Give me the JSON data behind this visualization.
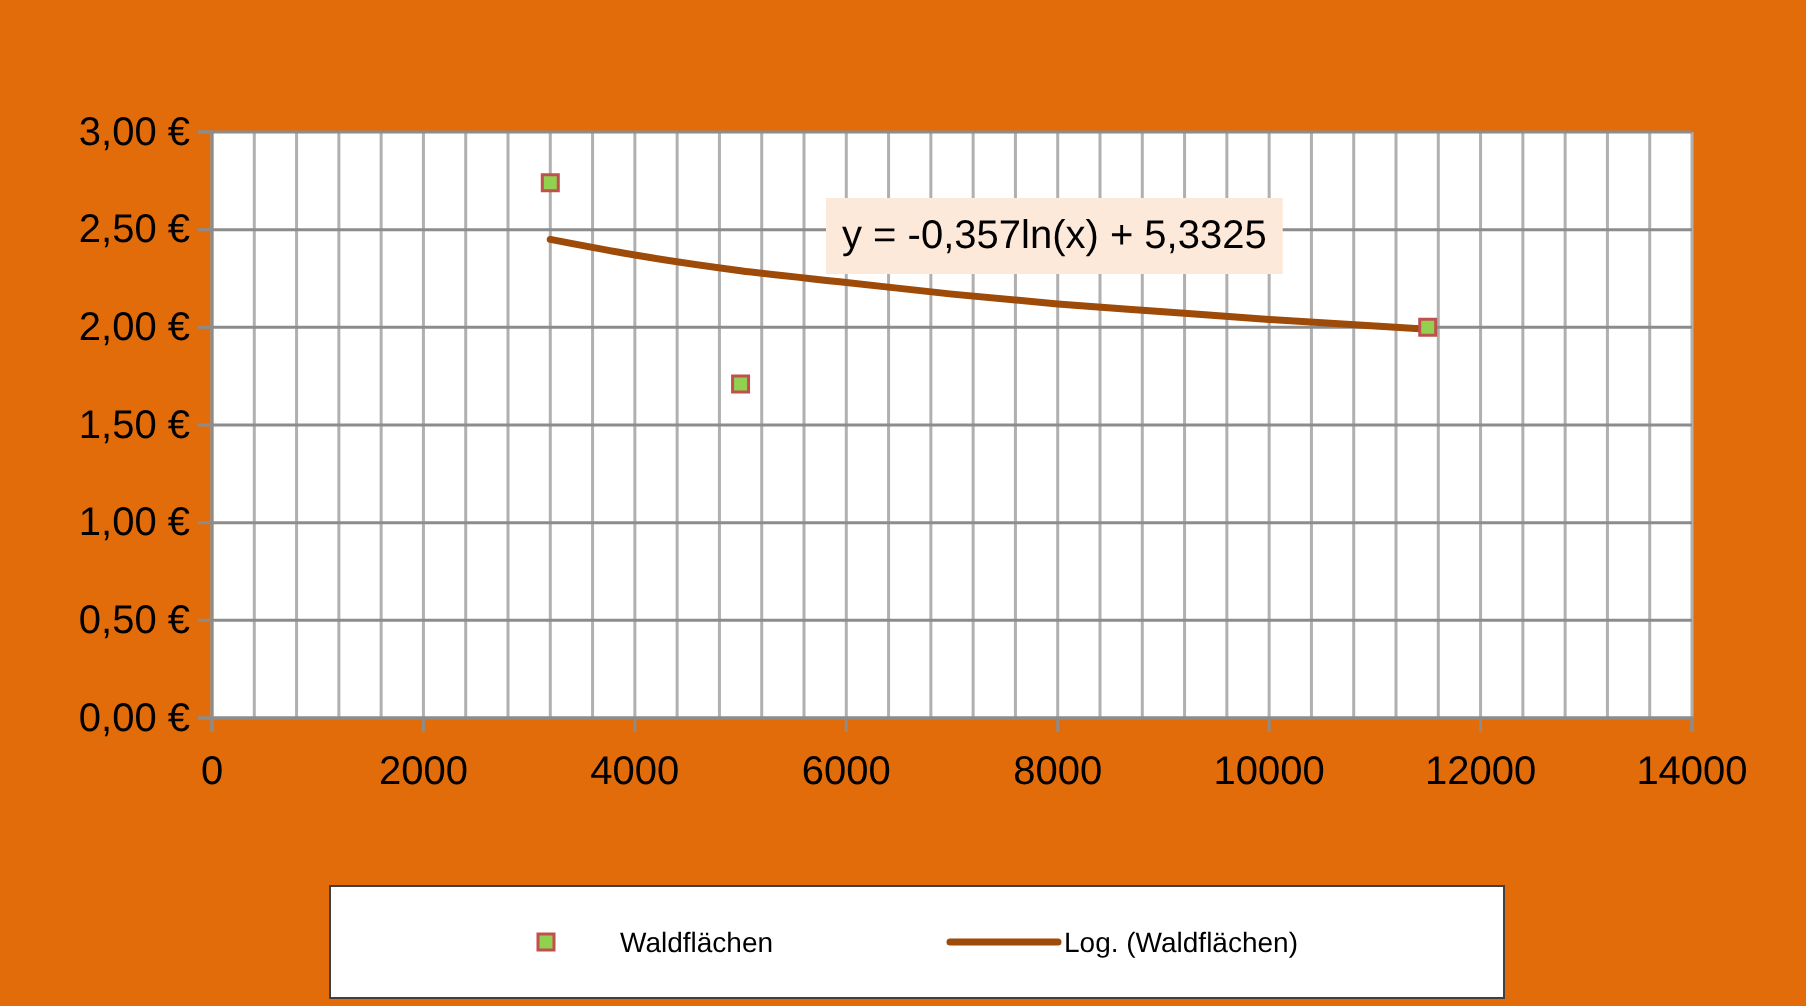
{
  "chart_data": {
    "type": "scatter",
    "xlim": [
      0,
      14000
    ],
    "ylim": [
      0,
      3
    ],
    "xticks": [
      0,
      2000,
      4000,
      6000,
      8000,
      10000,
      12000,
      14000
    ],
    "yticks": [
      {
        "value": 0,
        "label": "0,00 €"
      },
      {
        "value": 0.5,
        "label": "0,50 €"
      },
      {
        "value": 1,
        "label": "1,00 €"
      },
      {
        "value": 1.5,
        "label": "1,50 €"
      },
      {
        "value": 2,
        "label": "2,00 €"
      },
      {
        "value": 2.5,
        "label": "2,50 €"
      },
      {
        "value": 3,
        "label": "3,00 €"
      }
    ],
    "grid": true,
    "legend": "bottom",
    "series": [
      {
        "name": "Waldflächen",
        "marker": "square",
        "color": "#92d050",
        "x": [
          3200,
          5000,
          11500
        ],
        "values": [
          2.74,
          1.71,
          2.0
        ]
      },
      {
        "name": "Log. (Waldflächen)",
        "type": "line",
        "marker": "none",
        "color": "#9e4a08",
        "line_style": "solid",
        "x": [
          3200,
          4000,
          5000,
          6000,
          7000,
          8000,
          9000,
          10000,
          11500
        ],
        "values": [
          2.45,
          2.37,
          2.29,
          2.23,
          2.17,
          2.12,
          2.08,
          2.04,
          1.99
        ]
      }
    ],
    "annotations": [
      "y = -0,357ln(x) + 5,3325"
    ]
  }
}
